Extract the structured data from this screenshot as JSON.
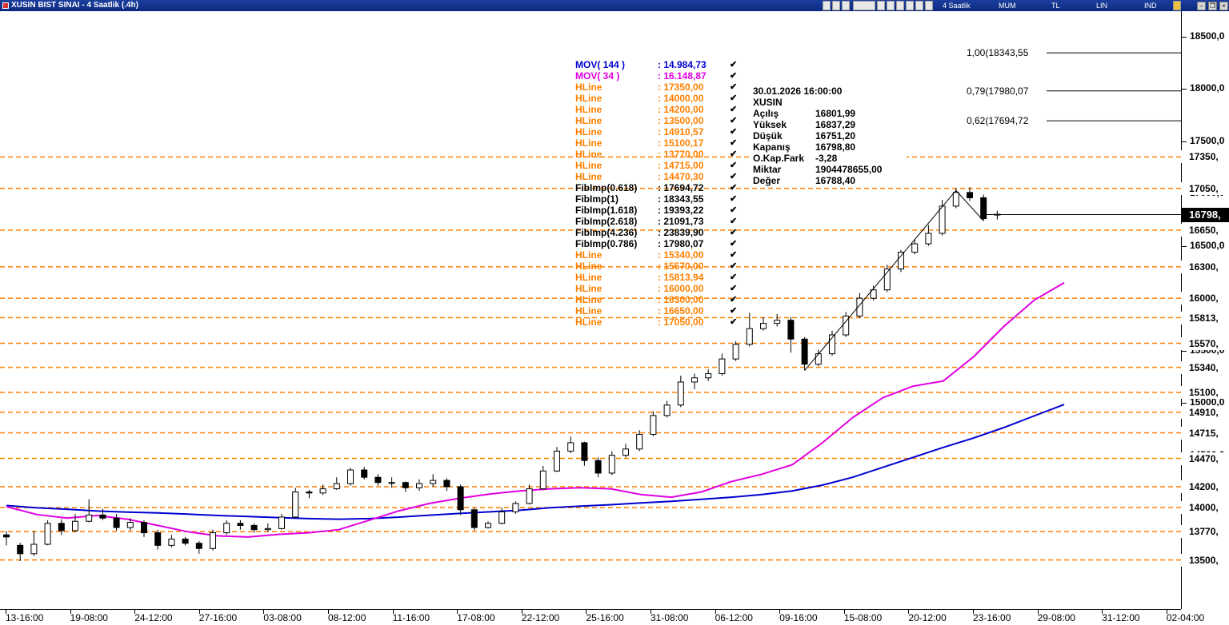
{
  "window": {
    "title": "XUSIN BIST SINAI - 4 Saatlik (.4h)",
    "toolbar": {
      "period": "4 Saatlik",
      "chart_style": "MUM",
      "currency": "TL",
      "scale": "LIN",
      "mode": "IND"
    },
    "controls": [
      "minimize",
      "restore",
      "close"
    ]
  },
  "legend": [
    {
      "name": "MOV( 144 )",
      "value": ": 14.984,73",
      "color": "#0000d0"
    },
    {
      "name": "MOV( 34 )",
      "value": ": 16.148,87",
      "color": "#e000e0"
    },
    {
      "name": "HLine",
      "value": ": 17350,00",
      "color": "#ff8000"
    },
    {
      "name": "HLine",
      "value": ": 14000,00",
      "color": "#ff8000"
    },
    {
      "name": "HLine",
      "value": ": 14200,00",
      "color": "#ff8000"
    },
    {
      "name": "HLine",
      "value": ": 13500,00",
      "color": "#ff8000"
    },
    {
      "name": "HLine",
      "value": ": 14910,57",
      "color": "#ff8000"
    },
    {
      "name": "HLine",
      "value": ": 15100,17",
      "color": "#ff8000"
    },
    {
      "name": "HLine",
      "value": ": 13770,00",
      "color": "#ff8000"
    },
    {
      "name": "HLine",
      "value": ": 14715,00",
      "color": "#ff8000"
    },
    {
      "name": "HLine",
      "value": ": 14470,30",
      "color": "#ff8000"
    },
    {
      "name": "FibImp(0.618)",
      "value": ": 17694,72",
      "color": "#000000"
    },
    {
      "name": "FibImp(1)",
      "value": ": 18343,55",
      "color": "#000000"
    },
    {
      "name": "FibImp(1.618)",
      "value": ": 19393,22",
      "color": "#000000"
    },
    {
      "name": "FibImp(2.618)",
      "value": ": 21091,73",
      "color": "#000000"
    },
    {
      "name": "FibImp(4.236)",
      "value": ": 23839,90",
      "color": "#000000"
    },
    {
      "name": "FibImp(0.786)",
      "value": ": 17980,07",
      "color": "#000000"
    },
    {
      "name": "HLine",
      "value": ": 15340,00",
      "color": "#ff8000"
    },
    {
      "name": "HLine",
      "value": ": 15570,00",
      "color": "#ff8000"
    },
    {
      "name": "HLine",
      "value": ": 15813,94",
      "color": "#ff8000"
    },
    {
      "name": "HLine",
      "value": ": 16000,00",
      "color": "#ff8000"
    },
    {
      "name": "HLine",
      "value": ": 16300,00",
      "color": "#ff8000"
    },
    {
      "name": "HLine",
      "value": ": 16650,00",
      "color": "#ff8000"
    },
    {
      "name": "HLine",
      "value": ": 17050,00",
      "color": "#ff8000"
    }
  ],
  "info": {
    "datetime": "30.01.2026  16:00:00",
    "symbol": "XUSIN",
    "rows": [
      {
        "k": "Açılış",
        "v": "16801,99"
      },
      {
        "k": "Yüksek",
        "v": "16837,29"
      },
      {
        "k": "Düşük",
        "v": "16751,20"
      },
      {
        "k": "Kapanış",
        "v": "16798,80"
      },
      {
        "k": "O.Kap.Fark",
        "v": "-3,28"
      },
      {
        "k": "Miktar",
        "v": "1904478655,00"
      },
      {
        "k": "Değer",
        "v": "16788,40"
      }
    ]
  },
  "chart_data": {
    "type": "candlestick",
    "ylim": [
      13200,
      18600
    ],
    "y_ticks": [
      "18500,0",
      "18000,0",
      "17500,0",
      "17000,0",
      "16500,0",
      "16000,0",
      "15500,0",
      "15000,0",
      "14500,0"
    ],
    "x_ticks": [
      "13-16:00",
      "19-08:00",
      "24-12:00",
      "27-16:00",
      "03-08:00",
      "08-12:00",
      "11-16:00",
      "17-08:00",
      "22-12:00",
      "25-16:00",
      "31-08:00",
      "06-12:00",
      "09-16:00",
      "15-08:00",
      "20-12:00",
      "23-16:00",
      "29-08:00",
      "31-12:00",
      "02-04:00"
    ],
    "hlines": [
      {
        "value": 17350,
        "label": "17350,"
      },
      {
        "value": 17050,
        "label": "17050,"
      },
      {
        "value": 16650,
        "label": "16650,"
      },
      {
        "value": 16300,
        "label": "16300,"
      },
      {
        "value": 16000,
        "label": "16000,"
      },
      {
        "value": 15813.94,
        "label": "15813,"
      },
      {
        "value": 15570,
        "label": "15570,"
      },
      {
        "value": 15340,
        "label": "15340,"
      },
      {
        "value": 15100.17,
        "label": "15100,"
      },
      {
        "value": 14910.57,
        "label": "14910,"
      },
      {
        "value": 14715,
        "label": "14715,"
      },
      {
        "value": 14470.3,
        "label": "14470,"
      },
      {
        "value": 14200,
        "label": "14200,"
      },
      {
        "value": 14000,
        "label": "14000,"
      },
      {
        "value": 13770,
        "label": "13770,"
      },
      {
        "value": 13500,
        "label": "13500,"
      }
    ],
    "fib_levels": [
      {
        "ratio": "1,00",
        "value": "18343,55",
        "label": "1,00(18343,55"
      },
      {
        "ratio": "0,79",
        "value": "17980,07",
        "label": "0,79(17980,07"
      },
      {
        "ratio": "0,62",
        "value": "17694,72",
        "label": "0,62(17694,72"
      }
    ],
    "last_price": "16798,",
    "last_value": 16798.8,
    "mov144_last": 14984.73,
    "mov34_last": 16148.87,
    "colors": {
      "hline": "#ff8000",
      "mov144": "#0000d0",
      "mov34": "#e000e0",
      "last_price_bg": "#000000"
    },
    "series": [
      {
        "name": "MOV( 144 )",
        "values": [
          14020,
          13998,
          13985,
          13968,
          13958,
          13950,
          13938,
          13925,
          13915,
          13905,
          13895,
          13890,
          13895,
          13910,
          13928,
          13945,
          13960,
          13975,
          14000,
          14015,
          14028,
          14045,
          14060,
          14080,
          14100,
          14125,
          14160,
          14215,
          14290,
          14385,
          14480,
          14575,
          14665,
          14765,
          14875,
          14985
        ]
      },
      {
        "name": "MOV( 34 )",
        "values": [
          14010,
          13935,
          13900,
          13925,
          13890,
          13830,
          13770,
          13730,
          13720,
          13745,
          13760,
          13790,
          13880,
          13970,
          14040,
          14090,
          14130,
          14160,
          14180,
          14190,
          14180,
          14125,
          14100,
          14150,
          14250,
          14320,
          14410,
          14620,
          14860,
          15050,
          15160,
          15210,
          15440,
          15730,
          15980,
          16148.87
        ]
      }
    ],
    "candles": [
      [
        13740,
        13720,
        13775,
        13640
      ],
      [
        13640,
        13560,
        13665,
        13490
      ],
      [
        13560,
        13650,
        13780,
        13540
      ],
      [
        13650,
        13850,
        13880,
        13640
      ],
      [
        13850,
        13780,
        13890,
        13740
      ],
      [
        13780,
        13870,
        13940,
        13770
      ],
      [
        13870,
        13930,
        14080,
        13860
      ],
      [
        13930,
        13900,
        13990,
        13880
      ],
      [
        13900,
        13810,
        13940,
        13780
      ],
      [
        13810,
        13860,
        13900,
        13780
      ],
      [
        13860,
        13760,
        13880,
        13720
      ],
      [
        13760,
        13640,
        13790,
        13600
      ],
      [
        13640,
        13700,
        13740,
        13620
      ],
      [
        13700,
        13660,
        13720,
        13640
      ],
      [
        13660,
        13610,
        13680,
        13560
      ],
      [
        13610,
        13760,
        13790,
        13590
      ],
      [
        13760,
        13850,
        13880,
        13740
      ],
      [
        13850,
        13830,
        13880,
        13790
      ],
      [
        13830,
        13790,
        13850,
        13760
      ],
      [
        13790,
        13800,
        13850,
        13770
      ],
      [
        13800,
        13910,
        13940,
        13790
      ],
      [
        13910,
        14150,
        14190,
        13900
      ],
      [
        14150,
        14140,
        14170,
        14090
      ],
      [
        14140,
        14180,
        14220,
        14120
      ],
      [
        14180,
        14230,
        14290,
        14170
      ],
      [
        14230,
        14360,
        14380,
        14210
      ],
      [
        14360,
        14290,
        14390,
        14270
      ],
      [
        14290,
        14240,
        14320,
        14210
      ],
      [
        14240,
        14240,
        14290,
        14190
      ],
      [
        14240,
        14190,
        14250,
        14150
      ],
      [
        14190,
        14230,
        14270,
        14160
      ],
      [
        14230,
        14260,
        14320,
        14200
      ],
      [
        14260,
        14200,
        14280,
        14160
      ],
      [
        14200,
        13980,
        14220,
        13930
      ],
      [
        13980,
        13810,
        14000,
        13780
      ],
      [
        13810,
        13850,
        13870,
        13800
      ],
      [
        13850,
        13960,
        14000,
        13840
      ],
      [
        13960,
        14040,
        14060,
        13940
      ],
      [
        14040,
        14180,
        14220,
        14030
      ],
      [
        14180,
        14350,
        14400,
        14170
      ],
      [
        14350,
        14540,
        14580,
        14340
      ],
      [
        14540,
        14620,
        14680,
        14520
      ],
      [
        14620,
        14450,
        14630,
        14400
      ],
      [
        14450,
        14330,
        14480,
        14290
      ],
      [
        14330,
        14500,
        14540,
        14310
      ],
      [
        14500,
        14560,
        14610,
        14480
      ],
      [
        14560,
        14700,
        14740,
        14540
      ],
      [
        14700,
        14880,
        14920,
        14680
      ],
      [
        14880,
        14980,
        15020,
        14860
      ],
      [
        14980,
        15200,
        15260,
        14960
      ],
      [
        15200,
        15240,
        15280,
        15130
      ],
      [
        15240,
        15280,
        15320,
        15210
      ],
      [
        15280,
        15420,
        15470,
        15260
      ],
      [
        15420,
        15560,
        15590,
        15400
      ],
      [
        15560,
        15710,
        15860,
        15540
      ],
      [
        15710,
        15760,
        15820,
        15690
      ],
      [
        15760,
        15790,
        15850,
        15730
      ],
      [
        15790,
        15610,
        15820,
        15480
      ],
      [
        15610,
        15370,
        15630,
        15310
      ],
      [
        15370,
        15470,
        15510,
        15350
      ],
      [
        15470,
        15650,
        15690,
        15450
      ],
      [
        15650,
        15830,
        15870,
        15630
      ],
      [
        15830,
        16000,
        16050,
        15810
      ],
      [
        16000,
        16080,
        16120,
        15980
      ],
      [
        16080,
        16280,
        16320,
        16060
      ],
      [
        16280,
        16440,
        16460,
        16250
      ],
      [
        16440,
        16520,
        16560,
        16420
      ],
      [
        16520,
        16620,
        16700,
        16500
      ],
      [
        16620,
        16880,
        16940,
        16600
      ],
      [
        16880,
        17010,
        17050,
        16860
      ],
      [
        17010,
        16960,
        17060,
        16930
      ],
      [
        16960,
        16760,
        16990,
        16740
      ],
      [
        16801.99,
        16798.8,
        16837.29,
        16751.2
      ]
    ],
    "x_index_range": [
      0,
      77
    ]
  }
}
